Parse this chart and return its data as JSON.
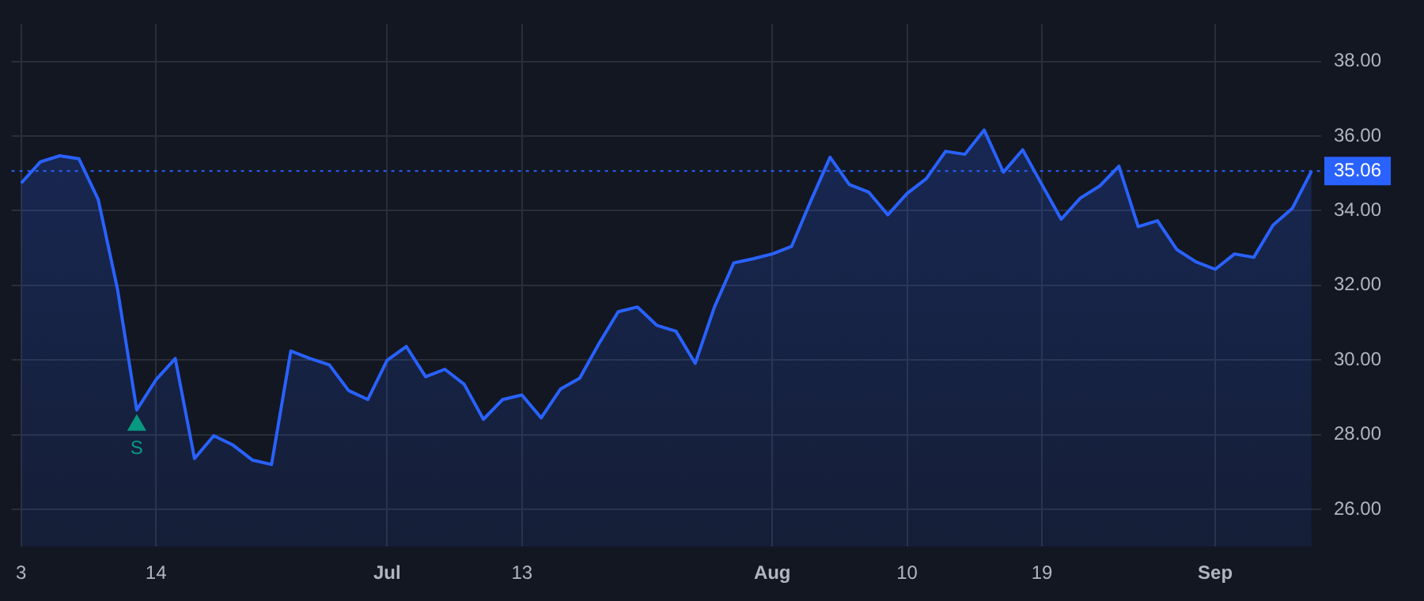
{
  "chart_data": {
    "type": "area",
    "categories": [
      "3",
      null,
      null,
      null,
      null,
      null,
      null,
      "14",
      null,
      null,
      null,
      null,
      null,
      null,
      null,
      null,
      null,
      null,
      null,
      "Jul",
      null,
      null,
      null,
      null,
      null,
      null,
      "13",
      null,
      null,
      null,
      null,
      null,
      null,
      null,
      null,
      null,
      null,
      null,
      null,
      "Aug",
      null,
      null,
      null,
      null,
      null,
      null,
      "10",
      null,
      null,
      null,
      null,
      null,
      null,
      "19",
      null,
      null,
      null,
      null,
      null,
      null,
      null,
      null,
      "Sep",
      null,
      null,
      null,
      null,
      null
    ],
    "series": [
      {
        "color": "#2962ff",
        "values": [
          34.74,
          35.31,
          35.47,
          35.39,
          34.3,
          31.9,
          28.66,
          29.47,
          30.04,
          27.36,
          27.97,
          27.72,
          27.32,
          27.2,
          30.24,
          30.04,
          29.87,
          29.18,
          28.94,
          29.99,
          30.36,
          29.55,
          29.75,
          29.35,
          28.41,
          28.94,
          29.06,
          28.45,
          29.22,
          29.51,
          30.44,
          31.29,
          31.42,
          30.93,
          30.77,
          29.91,
          31.42,
          32.6,
          32.71,
          32.84,
          33.04,
          34.26,
          35.43,
          34.7,
          34.5,
          33.89,
          34.46,
          34.86,
          35.59,
          35.51,
          36.16,
          35.03,
          35.63,
          34.7,
          33.77,
          34.34,
          34.66,
          35.19,
          33.57,
          33.73,
          32.96,
          32.63,
          32.43,
          32.84,
          32.75,
          33.61,
          34.06,
          35.06
        ]
      },
      {
        "type": "scatter",
        "name": "S",
        "color": "#089981",
        "marker": "triangle",
        "values": [
          null,
          null,
          null,
          null,
          null,
          null,
          28.25,
          null,
          null,
          null,
          null,
          null,
          null,
          null,
          null,
          null,
          null,
          null,
          null,
          null,
          null,
          null,
          null,
          null,
          null,
          null,
          null,
          null,
          null,
          null,
          null,
          null,
          null,
          null,
          null,
          null,
          null,
          null,
          null,
          null,
          null,
          null,
          null,
          null,
          null,
          null,
          null,
          null,
          null,
          null,
          null,
          null,
          null,
          null,
          null,
          null,
          null,
          null,
          null,
          null,
          null,
          null,
          null,
          null,
          null,
          null,
          null,
          null
        ]
      }
    ],
    "ylim": [
      25,
      39
    ],
    "yticks": [
      {
        "value": 26,
        "label": "26.00"
      },
      {
        "value": 28,
        "label": "28.00"
      },
      {
        "value": 30,
        "label": "30.00"
      },
      {
        "value": 32,
        "label": "32.00"
      },
      {
        "value": 34,
        "label": "34.00"
      },
      {
        "value": 36,
        "label": "36.00"
      },
      {
        "value": 38,
        "label": "38.00"
      }
    ],
    "ref_lines": [
      {
        "axis": "y",
        "value": 35.06,
        "label": "35.06",
        "color": "#2962ff",
        "line_style": "dotted"
      }
    ],
    "grid": true,
    "legend": false
  }
}
